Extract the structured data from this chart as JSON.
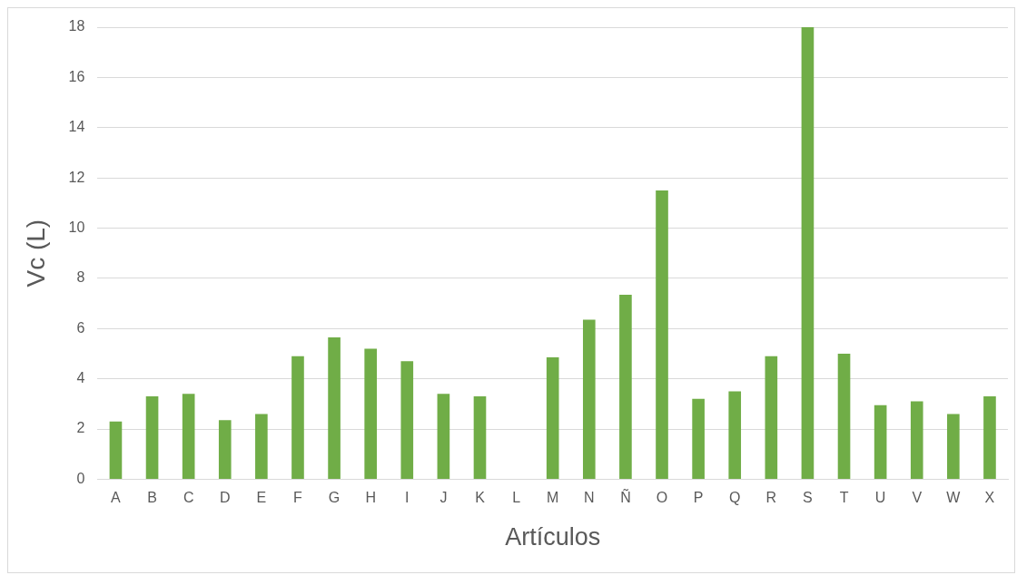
{
  "chart_data": {
    "type": "bar",
    "xlabel": "Artículos",
    "ylabel": "Vc (L)",
    "categories": [
      "A",
      "B",
      "C",
      "D",
      "E",
      "F",
      "G",
      "H",
      "I",
      "J",
      "K",
      "L",
      "M",
      "N",
      "Ñ",
      "O",
      "P",
      "Q",
      "R",
      "S",
      "T",
      "U",
      "V",
      "W",
      "X"
    ],
    "values": [
      2.3,
      3.3,
      3.4,
      2.35,
      2.6,
      4.9,
      5.65,
      5.2,
      4.7,
      3.4,
      3.3,
      0,
      4.85,
      6.35,
      7.35,
      11.5,
      3.2,
      3.5,
      4.9,
      18,
      5.0,
      2.95,
      3.1,
      2.6,
      3.3
    ],
    "color": "#70ad47",
    "ylim": [
      0,
      18
    ],
    "yticks": [
      0,
      2,
      4,
      6,
      8,
      10,
      12,
      14,
      16,
      18
    ],
    "grid": "y",
    "legend": false
  }
}
